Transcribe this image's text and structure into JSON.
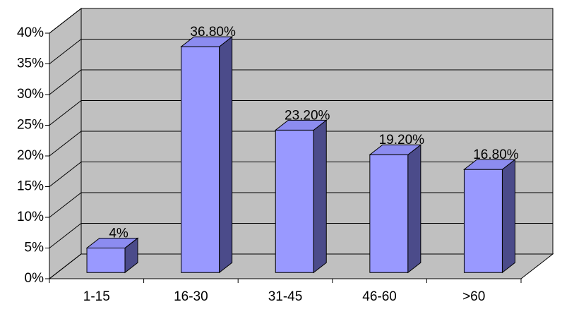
{
  "chart_data": {
    "type": "bar",
    "categories": [
      "1-15",
      "16-30",
      "31-45",
      "46-60",
      ">60"
    ],
    "values": [
      4,
      36.8,
      23.2,
      19.2,
      16.8
    ],
    "value_labels": [
      "4%",
      "36.80%",
      "23.20%",
      "19.20%",
      "16.80%"
    ],
    "color": "#9999ff",
    "ylim": [
      0,
      40
    ],
    "yticks": [
      {
        "value": 0,
        "label": "0%"
      },
      {
        "value": 5,
        "label": "5%"
      },
      {
        "value": 10,
        "label": "10%"
      },
      {
        "value": 15,
        "label": "15%"
      },
      {
        "value": 20,
        "label": "20%"
      },
      {
        "value": 25,
        "label": "25%"
      },
      {
        "value": 30,
        "label": "30%"
      },
      {
        "value": 35,
        "label": "35%"
      },
      {
        "value": 40,
        "label": "40%"
      }
    ],
    "grid": true
  }
}
